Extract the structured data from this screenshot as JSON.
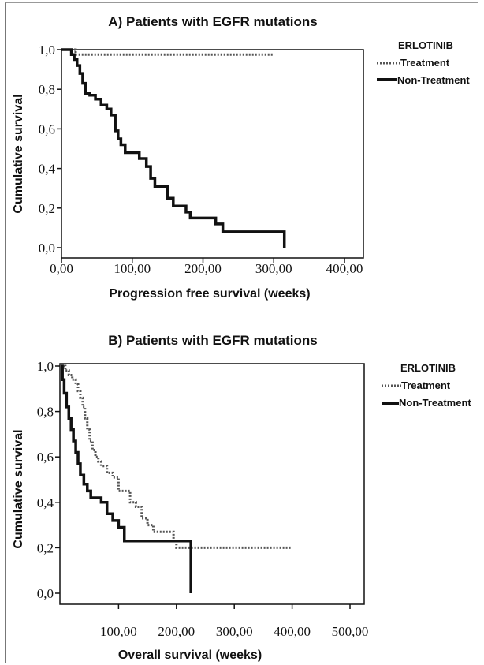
{
  "chart_data": [
    {
      "type": "line",
      "title": "A) Patients with EGFR mutations",
      "xlabel": "Progression free survival (weeks)",
      "ylabel": "Cumulative survival",
      "xlim": [
        0,
        400
      ],
      "ylim": [
        0,
        1.0
      ],
      "xticks": [
        "0,00",
        "100,00",
        "200,00",
        "300,00",
        "400,00"
      ],
      "yticks": [
        "0,0",
        "0,2",
        "0,4",
        "0,6",
        "0,8",
        "1,0"
      ],
      "legend": {
        "title": "ERLOTINIB",
        "position": "right"
      },
      "series": [
        {
          "name": "Treatment",
          "style": "dotted",
          "color": "#555555",
          "x": [
            0,
            20,
            300
          ],
          "y": [
            1.0,
            0.975,
            0.975
          ]
        },
        {
          "name": "Non-Treatment",
          "style": "solid",
          "color": "#111111",
          "x": [
            0,
            14,
            18,
            22,
            26,
            30,
            34,
            40,
            48,
            56,
            64,
            70,
            76,
            80,
            84,
            90,
            96,
            102,
            110,
            120,
            126,
            132,
            138,
            150,
            158,
            166,
            176,
            182,
            200,
            218,
            228,
            260,
            315,
            315
          ],
          "y": [
            1.0,
            0.975,
            0.95,
            0.92,
            0.88,
            0.83,
            0.78,
            0.77,
            0.75,
            0.72,
            0.7,
            0.67,
            0.59,
            0.55,
            0.52,
            0.48,
            0.48,
            0.48,
            0.45,
            0.41,
            0.35,
            0.31,
            0.31,
            0.25,
            0.21,
            0.21,
            0.18,
            0.15,
            0.15,
            0.12,
            0.08,
            0.08,
            0.08,
            0.0
          ]
        }
      ]
    },
    {
      "type": "line",
      "title": "B) Patients with EGFR mutations",
      "xlabel": "Overall survival (weeks)",
      "ylabel": "Cumulative survival",
      "xlim": [
        0,
        500
      ],
      "ylim": [
        0,
        1.0
      ],
      "xticks": [
        "100,00",
        "200,00",
        "300,00",
        "400,00",
        "500,00"
      ],
      "yticks": [
        "0,0",
        "0,2",
        "0,4",
        "0,6",
        "0,8",
        "1,0"
      ],
      "legend": {
        "title": "ERLOTINIB",
        "position": "right"
      },
      "series": [
        {
          "name": "Treatment",
          "style": "dotted",
          "color": "#555555",
          "x": [
            0,
            8,
            14,
            20,
            26,
            30,
            34,
            38,
            42,
            46,
            50,
            55,
            60,
            65,
            70,
            80,
            90,
            100,
            110,
            120,
            130,
            140,
            150,
            160,
            175,
            195,
            200,
            225,
            400
          ],
          "y": [
            1.0,
            0.98,
            0.96,
            0.94,
            0.92,
            0.89,
            0.86,
            0.82,
            0.77,
            0.72,
            0.67,
            0.63,
            0.6,
            0.58,
            0.56,
            0.53,
            0.51,
            0.45,
            0.45,
            0.4,
            0.38,
            0.33,
            0.3,
            0.27,
            0.27,
            0.23,
            0.2,
            0.2,
            0.2
          ]
        },
        {
          "name": "Non-Treatment",
          "style": "solid",
          "color": "#111111",
          "x": [
            0,
            3,
            6,
            10,
            14,
            18,
            22,
            26,
            30,
            34,
            40,
            46,
            52,
            60,
            70,
            80,
            90,
            100,
            110,
            225,
            225
          ],
          "y": [
            1.0,
            0.94,
            0.88,
            0.82,
            0.77,
            0.72,
            0.67,
            0.62,
            0.57,
            0.52,
            0.48,
            0.45,
            0.42,
            0.42,
            0.4,
            0.35,
            0.32,
            0.29,
            0.23,
            0.23,
            0.0
          ]
        }
      ]
    }
  ]
}
